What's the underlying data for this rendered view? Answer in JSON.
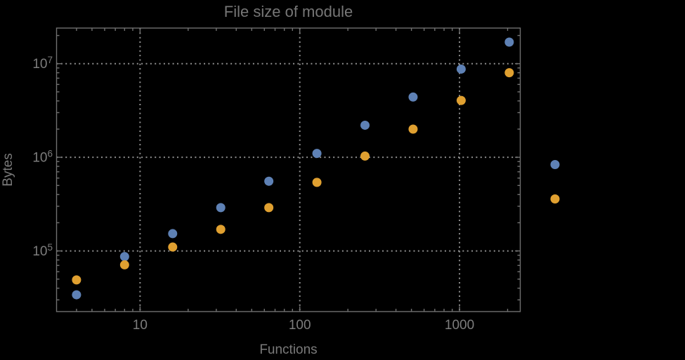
{
  "title": "File size of module",
  "colors": {
    "background": "#000000",
    "frame": "#707070",
    "grid": "#8f8f8f",
    "title_text": "#767676",
    "tick_text": "#7d7d7d",
    "series_blue": "#5e81b5",
    "series_orange": "#e0a030"
  },
  "chart_data": {
    "type": "scatter",
    "title": "File size of module",
    "xlabel": "Functions",
    "ylabel": "Bytes",
    "x_scale": "log",
    "y_scale": "log",
    "xlim": [
      3,
      2400
    ],
    "ylim": [
      22500,
      24000000
    ],
    "x_tick_values": [
      10,
      100,
      1000
    ],
    "x_tick_labels": [
      "10",
      "100",
      "1000"
    ],
    "y_tick_values": [
      100000,
      1000000,
      10000000
    ],
    "y_tick_exponents": [
      "5",
      "6",
      "7"
    ],
    "grid": "dotted",
    "legend_position": "right-center",
    "series": [
      {
        "name": "blue",
        "color": "#5e81b5",
        "marker": "circle",
        "points": [
          [
            4,
            34000
          ],
          [
            8,
            87000
          ],
          [
            16,
            153000
          ],
          [
            32,
            290000
          ],
          [
            64,
            555000
          ],
          [
            128,
            1100000
          ],
          [
            256,
            2200000
          ],
          [
            512,
            4400000
          ],
          [
            1024,
            8750000
          ],
          [
            2048,
            17000000
          ]
        ]
      },
      {
        "name": "orange",
        "color": "#e0a030",
        "marker": "circle",
        "points": [
          [
            4,
            49000
          ],
          [
            8,
            71000
          ],
          [
            16,
            110000
          ],
          [
            32,
            170000
          ],
          [
            64,
            290000
          ],
          [
            128,
            540000
          ],
          [
            256,
            1030000
          ],
          [
            512,
            2000000
          ],
          [
            1024,
            4050000
          ],
          [
            2048,
            8000000
          ]
        ]
      }
    ]
  },
  "legend": {
    "labels_visible": false,
    "markers": [
      {
        "series": "blue"
      },
      {
        "series": "orange"
      }
    ]
  }
}
